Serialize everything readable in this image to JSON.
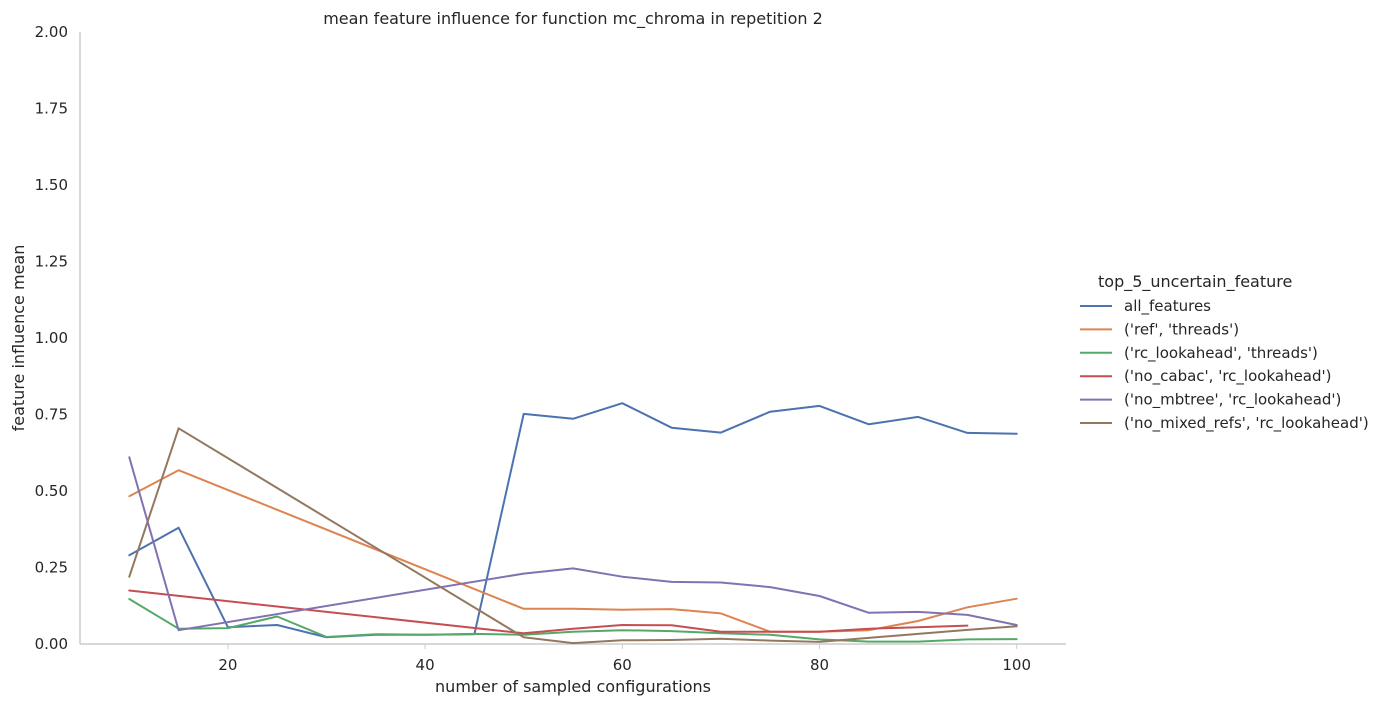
{
  "chart_data": {
    "type": "line",
    "title": "mean feature influence for function mc_chroma in repetition 2",
    "xlabel": "number of sampled configurations",
    "ylabel": "feature influence mean",
    "xlim": [
      5,
      105
    ],
    "ylim": [
      0,
      2.0
    ],
    "xticks": [
      20,
      40,
      60,
      80,
      100
    ],
    "xtick_labels": [
      "20",
      "40",
      "60",
      "80",
      "100"
    ],
    "yticks": [
      0,
      0.25,
      0.5,
      0.75,
      1.0,
      1.25,
      1.5,
      1.75,
      2.0
    ],
    "ytick_labels": [
      "0.00",
      "0.25",
      "0.50",
      "0.75",
      "1.00",
      "1.25",
      "1.50",
      "1.75",
      "2.00"
    ],
    "grid": false,
    "legend_title": "top_5_uncertain_feature",
    "legend_position": "right",
    "series": [
      {
        "name": "all_features",
        "color": "#4c72b0",
        "points": [
          [
            10,
            0.29
          ],
          [
            15,
            0.38
          ],
          [
            20,
            0.055
          ],
          [
            25,
            0.062
          ],
          [
            30,
            0.022
          ],
          [
            35,
            0.03
          ],
          [
            40,
            0.03
          ],
          [
            45,
            0.032
          ],
          [
            50,
            0.752
          ],
          [
            55,
            0.736
          ],
          [
            60,
            0.787
          ],
          [
            65,
            0.707
          ],
          [
            70,
            0.691
          ],
          [
            75,
            0.759
          ],
          [
            80,
            0.778
          ],
          [
            85,
            0.718
          ],
          [
            90,
            0.742
          ],
          [
            95,
            0.69
          ],
          [
            100,
            0.687
          ]
        ]
      },
      {
        "name": "('ref', 'threads')",
        "color": "#dd8452",
        "points": [
          [
            10,
            0.483
          ],
          [
            15,
            0.568
          ],
          [
            50,
            0.115
          ],
          [
            55,
            0.115
          ],
          [
            60,
            0.112
          ],
          [
            65,
            0.114
          ],
          [
            70,
            0.1
          ],
          [
            75,
            0.04
          ],
          [
            80,
            0.04
          ],
          [
            85,
            0.045
          ],
          [
            90,
            0.075
          ],
          [
            95,
            0.12
          ],
          [
            100,
            0.148
          ]
        ]
      },
      {
        "name": "('rc_lookahead', 'threads')",
        "color": "#55a868",
        "points": [
          [
            10,
            0.147
          ],
          [
            15,
            0.05
          ],
          [
            20,
            0.052
          ],
          [
            25,
            0.09
          ],
          [
            30,
            0.023
          ],
          [
            35,
            0.032
          ],
          [
            40,
            0.03
          ],
          [
            45,
            0.033
          ],
          [
            50,
            0.03
          ],
          [
            55,
            0.04
          ],
          [
            60,
            0.045
          ],
          [
            65,
            0.042
          ],
          [
            70,
            0.035
          ],
          [
            75,
            0.03
          ],
          [
            80,
            0.015
          ],
          [
            85,
            0.008
          ],
          [
            90,
            0.008
          ],
          [
            95,
            0.015
          ],
          [
            100,
            0.016
          ]
        ]
      },
      {
        "name": "('no_cabac', 'rc_lookahead')",
        "color": "#c44e52",
        "points": [
          [
            10,
            0.175
          ],
          [
            50,
            0.035
          ],
          [
            55,
            0.05
          ],
          [
            60,
            0.062
          ],
          [
            65,
            0.061
          ],
          [
            70,
            0.04
          ],
          [
            75,
            0.04
          ],
          [
            80,
            0.04
          ],
          [
            85,
            0.05
          ],
          [
            90,
            0.055
          ],
          [
            95,
            0.06
          ]
        ]
      },
      {
        "name": "('no_mbtree', 'rc_lookahead')",
        "color": "#8172b3",
        "points": [
          [
            10,
            0.61
          ],
          [
            15,
            0.045
          ],
          [
            50,
            0.23
          ],
          [
            55,
            0.247
          ],
          [
            60,
            0.22
          ],
          [
            65,
            0.203
          ],
          [
            70,
            0.201
          ],
          [
            75,
            0.186
          ],
          [
            80,
            0.157
          ],
          [
            85,
            0.102
          ],
          [
            90,
            0.105
          ],
          [
            95,
            0.095
          ],
          [
            100,
            0.062
          ]
        ]
      },
      {
        "name": "('no_mixed_refs', 'rc_lookahead')",
        "color": "#937860",
        "points": [
          [
            10,
            0.22
          ],
          [
            15,
            0.705
          ],
          [
            50,
            0.022
          ],
          [
            55,
            0.003
          ],
          [
            60,
            0.012
          ],
          [
            65,
            0.013
          ],
          [
            70,
            0.017
          ],
          [
            75,
            0.011
          ],
          [
            80,
            0.007
          ],
          [
            85,
            0.02
          ],
          [
            90,
            0.033
          ],
          [
            95,
            0.046
          ],
          [
            100,
            0.058
          ]
        ]
      }
    ]
  }
}
